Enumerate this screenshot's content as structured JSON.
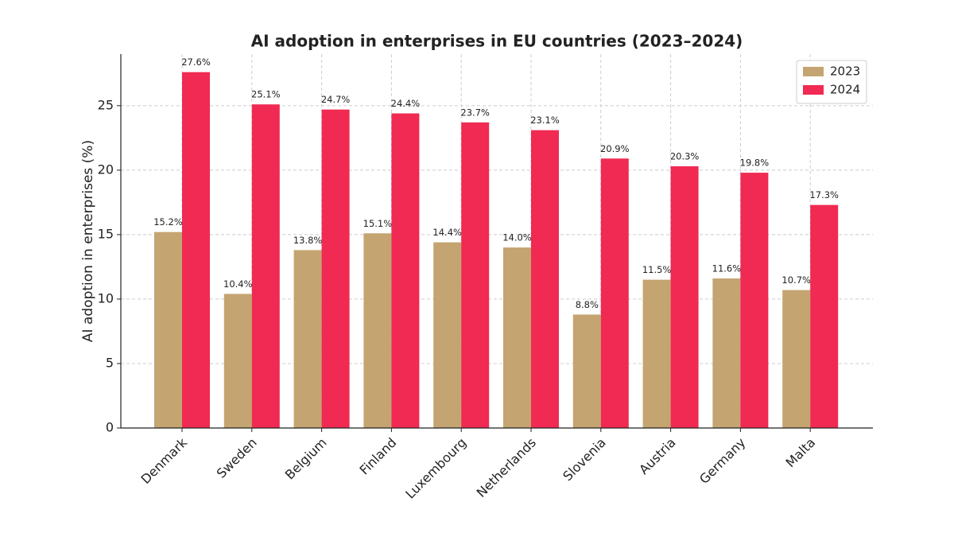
{
  "chart_data": {
    "type": "bar",
    "title": "AI adoption in enterprises in EU countries (2023–2024)",
    "y_label": "AI adoption in enterprises (%)",
    "categories": [
      "Denmark",
      "Sweden",
      "Belgium",
      "Finland",
      "Luxembourg",
      "Netherlands",
      "Slovenia",
      "Austria",
      "Germany",
      "Malta"
    ],
    "series": [
      {
        "name": "2023",
        "color": "#c4a470",
        "values": [
          15.2,
          10.4,
          13.8,
          15.1,
          14.4,
          14.0,
          8.8,
          11.5,
          11.6,
          10.7
        ],
        "value_labels": [
          "15.2%",
          "10.4%",
          "13.8%",
          "15.1%",
          "14.4%",
          "14.0%",
          "8.8%",
          "11.5%",
          "11.6%",
          "10.7%"
        ]
      },
      {
        "name": "2024",
        "color": "#f02a52",
        "values": [
          27.6,
          25.1,
          24.7,
          24.4,
          23.7,
          23.1,
          20.9,
          20.3,
          19.8,
          17.3
        ],
        "value_labels": [
          "27.6%",
          "25.1%",
          "24.7%",
          "24.4%",
          "23.7%",
          "23.1%",
          "20.9%",
          "20.3%",
          "19.8%",
          "17.3%"
        ]
      }
    ],
    "ylim": [
      0,
      29
    ],
    "yticks": [
      0,
      5,
      10,
      15,
      20,
      25
    ],
    "grid": true,
    "legend": "upper right"
  }
}
